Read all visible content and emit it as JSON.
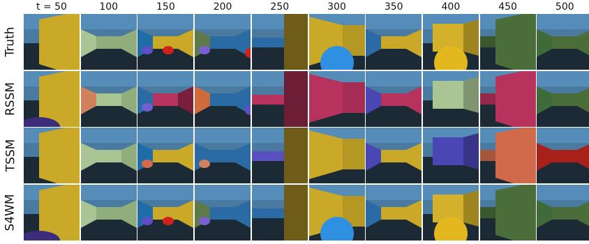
{
  "columns": [
    "t = 50",
    "100",
    "150",
    "200",
    "250",
    "300",
    "350",
    "400",
    "450",
    "500"
  ],
  "rows": [
    {
      "label": "Truth",
      "frames": [
        {
          "scene": "wall-right",
          "wall": "#c9a927"
        },
        {
          "scene": "corridor",
          "back": "#8fae7b",
          "left": "#a9c594",
          "right": "#8fae7b"
        },
        {
          "scene": "corridor-objects",
          "back": "#c9a927",
          "left": "#1f6da8",
          "right": "#c9a927",
          "objects": [
            {
              "color": "#5f4fc7",
              "size": "small"
            },
            {
              "color": "#d0221a",
              "size": "small"
            }
          ]
        },
        {
          "scene": "corridor-objects",
          "back": "#2b6ba5",
          "left": "#5d7a48",
          "right": "#2b6ba5",
          "objects": [
            {
              "color": "#7a5fd0",
              "size": "small"
            },
            {
              "color": "#d0221a",
              "size": "edge"
            }
          ]
        },
        {
          "scene": "wall-right-far",
          "wall": "#6f5c18",
          "back": "#2b6ba5"
        },
        {
          "scene": "wall-left-object",
          "wall": "#c9a927",
          "objects": [
            {
              "color": "#2f8fe0",
              "size": "big"
            }
          ]
        },
        {
          "scene": "corridor",
          "back": "#c9a927",
          "left": "#2b6ba5",
          "right": "#c9a927"
        },
        {
          "scene": "wall-front-object",
          "wall": "#d3b12b",
          "objects": [
            {
              "color": "#e2b81e",
              "size": "big"
            }
          ]
        },
        {
          "scene": "wall-right",
          "wall": "#4a6d3a",
          "back": "#4a6d3a"
        },
        {
          "scene": "corridor",
          "back": "#4a6d3a",
          "left": "#3f6b39",
          "right": "#4a6d3a"
        }
      ]
    },
    {
      "label": "RSSM",
      "frames": [
        {
          "scene": "wall-right",
          "wall": "#c9a927",
          "objects": [
            {
              "color": "#3b2d7a",
              "size": "floor"
            }
          ]
        },
        {
          "scene": "corridor",
          "back": "#a9c594",
          "left": "#d0805a",
          "right": "#8fae7b"
        },
        {
          "scene": "corridor-objects",
          "back": "#b8325e",
          "left": "#2b6ba5",
          "right": "#7a1e3b",
          "objects": [
            {
              "color": "#6f5fd0",
              "size": "small"
            }
          ]
        },
        {
          "scene": "corridor-objects",
          "back": "#2b6ba5",
          "left": "#d06a3a",
          "right": "#2b6ba5",
          "objects": [
            {
              "color": "#5f4fc7",
              "size": "edge"
            }
          ]
        },
        {
          "scene": "wall-right-far",
          "wall": "#6b1e35",
          "back": "#b8325e"
        },
        {
          "scene": "wall-left",
          "wall": "#b8325e"
        },
        {
          "scene": "corridor",
          "back": "#b8325e",
          "left": "#4a47b5",
          "right": "#b8325e"
        },
        {
          "scene": "wall-front",
          "wall": "#a9c594"
        },
        {
          "scene": "wall-right",
          "wall": "#b8325e",
          "back": "#b8325e"
        },
        {
          "scene": "corridor",
          "back": "#4a6d3a",
          "left": "#3f6b39",
          "right": "#4a6d3a"
        }
      ]
    },
    {
      "label": "TSSM",
      "frames": [
        {
          "scene": "wall-right",
          "wall": "#c9a927"
        },
        {
          "scene": "corridor",
          "back": "#a9c594",
          "left": "#a9c594",
          "right": "#8fae7b"
        },
        {
          "scene": "corridor-objects",
          "back": "#c9a927",
          "left": "#1f6da8",
          "right": "#c9a927",
          "objects": [
            {
              "color": "#d86a4a",
              "size": "small"
            }
          ]
        },
        {
          "scene": "corridor-objects",
          "back": "#2b6ba5",
          "left": "#2b6ba5",
          "right": "#2b6ba5",
          "objects": [
            {
              "color": "#d0805a",
              "size": "small"
            }
          ]
        },
        {
          "scene": "wall-right-far",
          "wall": "#6f5c18",
          "back": "#5a4fc0"
        },
        {
          "scene": "wall-left",
          "wall": "#c9a927"
        },
        {
          "scene": "corridor",
          "back": "#c9a927",
          "left": "#4a47b5",
          "right": "#c9a927"
        },
        {
          "scene": "wall-front",
          "wall": "#4a47b5"
        },
        {
          "scene": "wall-right",
          "wall": "#d06a4a",
          "back": "#d06a4a"
        },
        {
          "scene": "corridor",
          "back": "#a8201a",
          "left": "#a8201a",
          "right": "#a8201a"
        }
      ]
    },
    {
      "label": "S4WM",
      "frames": [
        {
          "scene": "wall-right",
          "wall": "#c9a927",
          "objects": [
            {
              "color": "#3b2d7a",
              "size": "floor"
            }
          ]
        },
        {
          "scene": "corridor",
          "back": "#8fae7b",
          "left": "#a9c594",
          "right": "#8fae7b"
        },
        {
          "scene": "corridor-objects",
          "back": "#c9a927",
          "left": "#1f6da8",
          "right": "#c9a927",
          "objects": [
            {
              "color": "#5f4fc7",
              "size": "small"
            },
            {
              "color": "#d0221a",
              "size": "small"
            }
          ]
        },
        {
          "scene": "corridor-objects",
          "back": "#2b6ba5",
          "left": "#5d7a48",
          "right": "#2b6ba5",
          "objects": [
            {
              "color": "#7a5fd0",
              "size": "small"
            }
          ]
        },
        {
          "scene": "wall-right-far",
          "wall": "#6f5c18",
          "back": "#2b6ba5"
        },
        {
          "scene": "wall-left-object",
          "wall": "#c9a927",
          "objects": [
            {
              "color": "#2f8fe0",
              "size": "big"
            }
          ]
        },
        {
          "scene": "corridor",
          "back": "#c9a927",
          "left": "#2b6ba5",
          "right": "#c9a927"
        },
        {
          "scene": "wall-front-object",
          "wall": "#d3b12b",
          "objects": [
            {
              "color": "#e2b81e",
              "size": "big"
            }
          ]
        },
        {
          "scene": "wall-right",
          "wall": "#4a6d3a",
          "back": "#4a6d3a"
        },
        {
          "scene": "corridor",
          "back": "#4a6d3a",
          "left": "#3f6b39",
          "right": "#4a6d3a"
        }
      ]
    }
  ],
  "colors": {
    "sky": "#4a7aa0",
    "floor": "#1c2a36",
    "grid_gap": "#ffffff"
  }
}
